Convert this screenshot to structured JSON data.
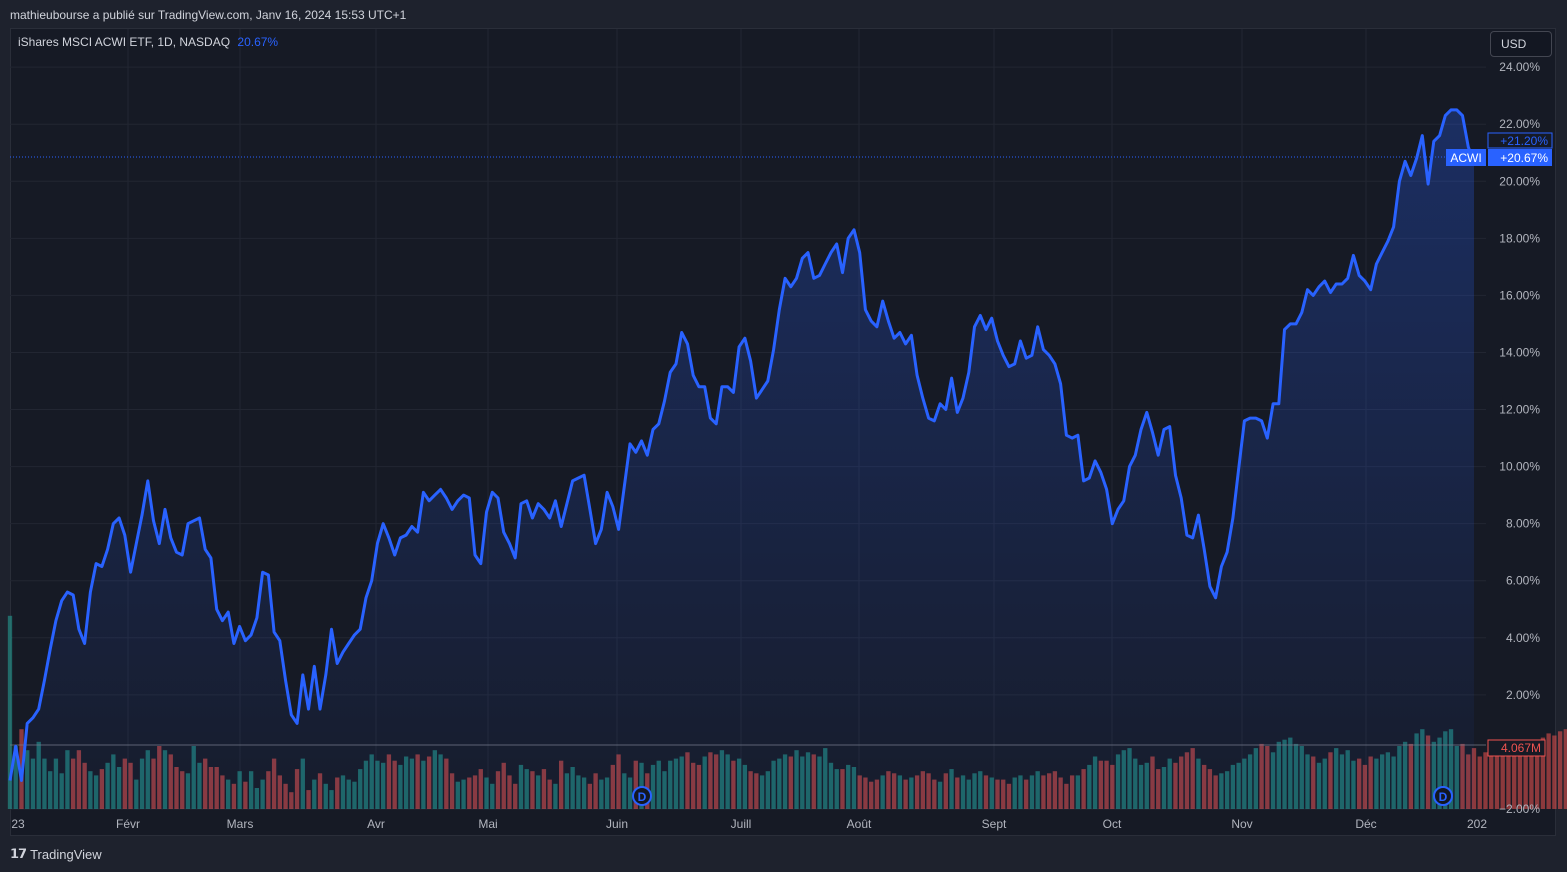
{
  "header": {
    "publisher_text": "mathieubourse a publié sur TradingView.com, Janv 16, 2024 15:53 UTC+1"
  },
  "legend": {
    "symbol": "iShares MSCI ACWI ETF, 1D, NASDAQ",
    "change": "20.67%"
  },
  "currency_button": "USD",
  "footer": {
    "brand": "TradingView",
    "logo_icon": "tradingview-logo-icon"
  },
  "colors": {
    "line": "#2962ff",
    "up_volume": "#26a69a",
    "down_volume": "#ef5350",
    "background": "#161a25"
  },
  "chart_data": {
    "type": "area",
    "x_ticks": [
      "23",
      "Févr",
      "Mars",
      "Avr",
      "Mai",
      "Juin",
      "Juill",
      "Août",
      "Sept",
      "Oct",
      "Nov",
      "Déc",
      "202"
    ],
    "y_ticks": [
      "24.00%",
      "22.00%",
      "20.00%",
      "18.00%",
      "16.00%",
      "14.00%",
      "12.00%",
      "10.00%",
      "8.00%",
      "6.00%",
      "4.00%",
      "2.00%",
      "−2.00%"
    ],
    "y_range": [
      -2,
      24.6
    ],
    "series": [
      {
        "name": "ACWI",
        "values": [
          -1,
          0.2,
          -1,
          1,
          1.2,
          1.5,
          2.5,
          3.6,
          4.6,
          5.3,
          5.6,
          5.5,
          4.3,
          3.8,
          5.6,
          6.6,
          6.5,
          7.1,
          8,
          8.2,
          7.6,
          6.3,
          7.3,
          8.3,
          9.5,
          8.1,
          7.3,
          8.5,
          7.5,
          7,
          6.9,
          8,
          8.1,
          8.2,
          7.1,
          6.8,
          5,
          4.6,
          4.9,
          3.8,
          4.4,
          3.9,
          4.1,
          4.7,
          6.3,
          6.2,
          4.2,
          3.9,
          2.5,
          1.3,
          1,
          2.7,
          1.5,
          3,
          1.5,
          2.7,
          4.3,
          3.1,
          3.5,
          3.8,
          4.1,
          4.3,
          5.4,
          6,
          7.3,
          8,
          7.5,
          6.9,
          7.5,
          7.6,
          7.9,
          7.7,
          9.1,
          8.8,
          9,
          9.2,
          8.9,
          8.5,
          8.8,
          9,
          8.9,
          6.9,
          6.6,
          8.4,
          9.1,
          8.9,
          7.7,
          7.3,
          6.8,
          8.7,
          8.8,
          8.2,
          8.7,
          8.5,
          8.2,
          8.8,
          7.9,
          8.7,
          9.5,
          9.6,
          9.7,
          8.5,
          7.3,
          7.8,
          9.1,
          8.6,
          7.8,
          9.3,
          10.8,
          10.5,
          10.9,
          10.4,
          11.3,
          11.5,
          12.3,
          13.3,
          13.6,
          14.7,
          14.3,
          13.2,
          12.8,
          12.8,
          11.7,
          11.5,
          12.8,
          12.8,
          12.6,
          14.2,
          14.5,
          13.7,
          12.4,
          12.7,
          13,
          14.1,
          15.5,
          16.6,
          16.3,
          16.6,
          17.3,
          17.5,
          16.6,
          16.7,
          17.1,
          17.5,
          17.8,
          16.8,
          18,
          18.3,
          17.5,
          15.5,
          15.1,
          14.9,
          15.8,
          15.1,
          14.5,
          14.7,
          14.3,
          14.6,
          13.2,
          12.4,
          11.7,
          11.6,
          12.2,
          12,
          13.1,
          11.9,
          12.4,
          13.3,
          14.9,
          15.3,
          14.8,
          15.2,
          14.4,
          13.9,
          13.5,
          13.6,
          14.4,
          13.8,
          13.9,
          14.9,
          14.1,
          13.9,
          13.6,
          12.9,
          11.1,
          11,
          11.1,
          9.5,
          9.6,
          10.2,
          9.8,
          9.2,
          8,
          8.5,
          8.8,
          10,
          10.4,
          11.3,
          11.9,
          11.2,
          10.4,
          11.3,
          11.4,
          9.7,
          8.9,
          7.6,
          7.5,
          8.3,
          7.1,
          5.8,
          5.4,
          6.5,
          7,
          8.2,
          9.9,
          11.6,
          11.7,
          11.7,
          11.6,
          11,
          12.2,
          12.2,
          14.8,
          15,
          15,
          15.4,
          16.2,
          16,
          16.3,
          16.5,
          16.1,
          16.4,
          16.4,
          16.6,
          17.4,
          16.7,
          16.5,
          16.2,
          17.1,
          17.5,
          17.9,
          18.4,
          20,
          20.7,
          20.2,
          20.8,
          21.6,
          19.9,
          21.4,
          21.6,
          22.3,
          22.5,
          22.5,
          22.3,
          21.2,
          20.67
        ]
      },
      {
        "name": "Volume",
        "values": [
          4.6,
          1.5,
          1.9,
          1.4,
          1.2,
          1.6,
          1.2,
          0.9,
          1.2,
          0.85,
          1.4,
          1.2,
          1.4,
          1.1,
          0.9,
          0.8,
          0.95,
          1.1,
          1.3,
          1,
          1.2,
          1.1,
          0.7,
          1.2,
          1.4,
          1.2,
          1.5,
          1.4,
          1.3,
          1,
          0.9,
          0.85,
          1.5,
          1.1,
          1.2,
          1,
          1,
          0.8,
          0.7,
          0.6,
          0.9,
          0.65,
          0.9,
          0.5,
          0.7,
          0.9,
          1.2,
          0.8,
          0.6,
          0.4,
          0.95,
          1.2,
          0.45,
          0.7,
          0.85,
          0.6,
          0.45,
          0.75,
          0.8,
          0.7,
          0.65,
          0.95,
          1.15,
          1.3,
          1.15,
          1.1,
          1.3,
          1.15,
          1.05,
          1.25,
          1.2,
          1.3,
          1.15,
          1.25,
          1.4,
          1.3,
          1.2,
          0.85,
          0.65,
          0.7,
          0.75,
          0.8,
          0.95,
          0.75,
          0.6,
          0.9,
          1.1,
          0.8,
          0.6,
          1.05,
          0.95,
          0.9,
          0.8,
          0.95,
          0.7,
          0.6,
          1.15,
          0.85,
          1,
          0.8,
          0.75,
          0.6,
          0.85,
          0.7,
          0.75,
          1.05,
          1.3,
          0.85,
          0.75,
          1.15,
          1.1,
          0.85,
          1.05,
          1.15,
          0.9,
          1.15,
          1.2,
          1.25,
          1.35,
          1.1,
          1.05,
          1.25,
          1.35,
          1.3,
          1.4,
          1.3,
          1.15,
          1.2,
          1.05,
          0.9,
          0.85,
          0.8,
          0.9,
          1.15,
          1.2,
          1.3,
          1.25,
          1.4,
          1.25,
          1.35,
          1.3,
          1.25,
          1.45,
          1.1,
          0.95,
          0.95,
          1.05,
          1,
          0.8,
          0.75,
          0.65,
          0.7,
          0.8,
          0.9,
          0.85,
          0.8,
          0.7,
          0.75,
          0.8,
          0.9,
          0.85,
          0.7,
          0.65,
          0.85,
          0.95,
          0.75,
          0.8,
          0.7,
          0.85,
          0.9,
          0.8,
          0.75,
          0.7,
          0.7,
          0.6,
          0.75,
          0.8,
          0.7,
          0.8,
          0.9,
          0.8,
          0.85,
          0.9,
          0.75,
          0.6,
          0.8,
          0.8,
          0.95,
          1.05,
          1.25,
          1.15,
          1.15,
          1.05,
          1.3,
          1.4,
          1.45,
          1.2,
          1.05,
          1.1,
          1.25,
          0.95,
          1,
          1.2,
          1.1,
          1.25,
          1.35,
          1.45,
          1.2,
          1.05,
          0.95,
          0.8,
          0.85,
          0.9,
          1.05,
          1.1,
          1.2,
          1.3,
          1.45,
          1.55,
          1.5,
          1.35,
          1.6,
          1.65,
          1.7,
          1.55,
          1.5,
          1.3,
          1.25,
          1.1,
          1.2,
          1.35,
          1.45,
          1.3,
          1.4,
          1.15,
          1.2,
          1.05,
          1.25,
          1.2,
          1.3,
          1.35,
          1.25,
          1.5,
          1.6,
          1.55,
          1.8,
          1.9,
          1.75,
          1.6,
          1.7,
          1.85,
          1.9,
          1.5,
          1.55,
          1.3,
          1.45,
          1.25,
          1.35,
          1.45,
          1.4,
          1.3,
          1.35,
          1.4,
          1.5,
          1.4,
          1.35,
          1.6,
          1.7,
          1.8,
          1.75,
          1.85,
          1.9,
          1.95,
          1.75,
          1.7,
          1.6
        ]
      }
    ],
    "last_price_label": "+20.67%",
    "high_label": "+21.20%",
    "series_label": "ACWI",
    "volume_label": "4.067M",
    "dividend_markers": [
      "D",
      "D"
    ]
  }
}
